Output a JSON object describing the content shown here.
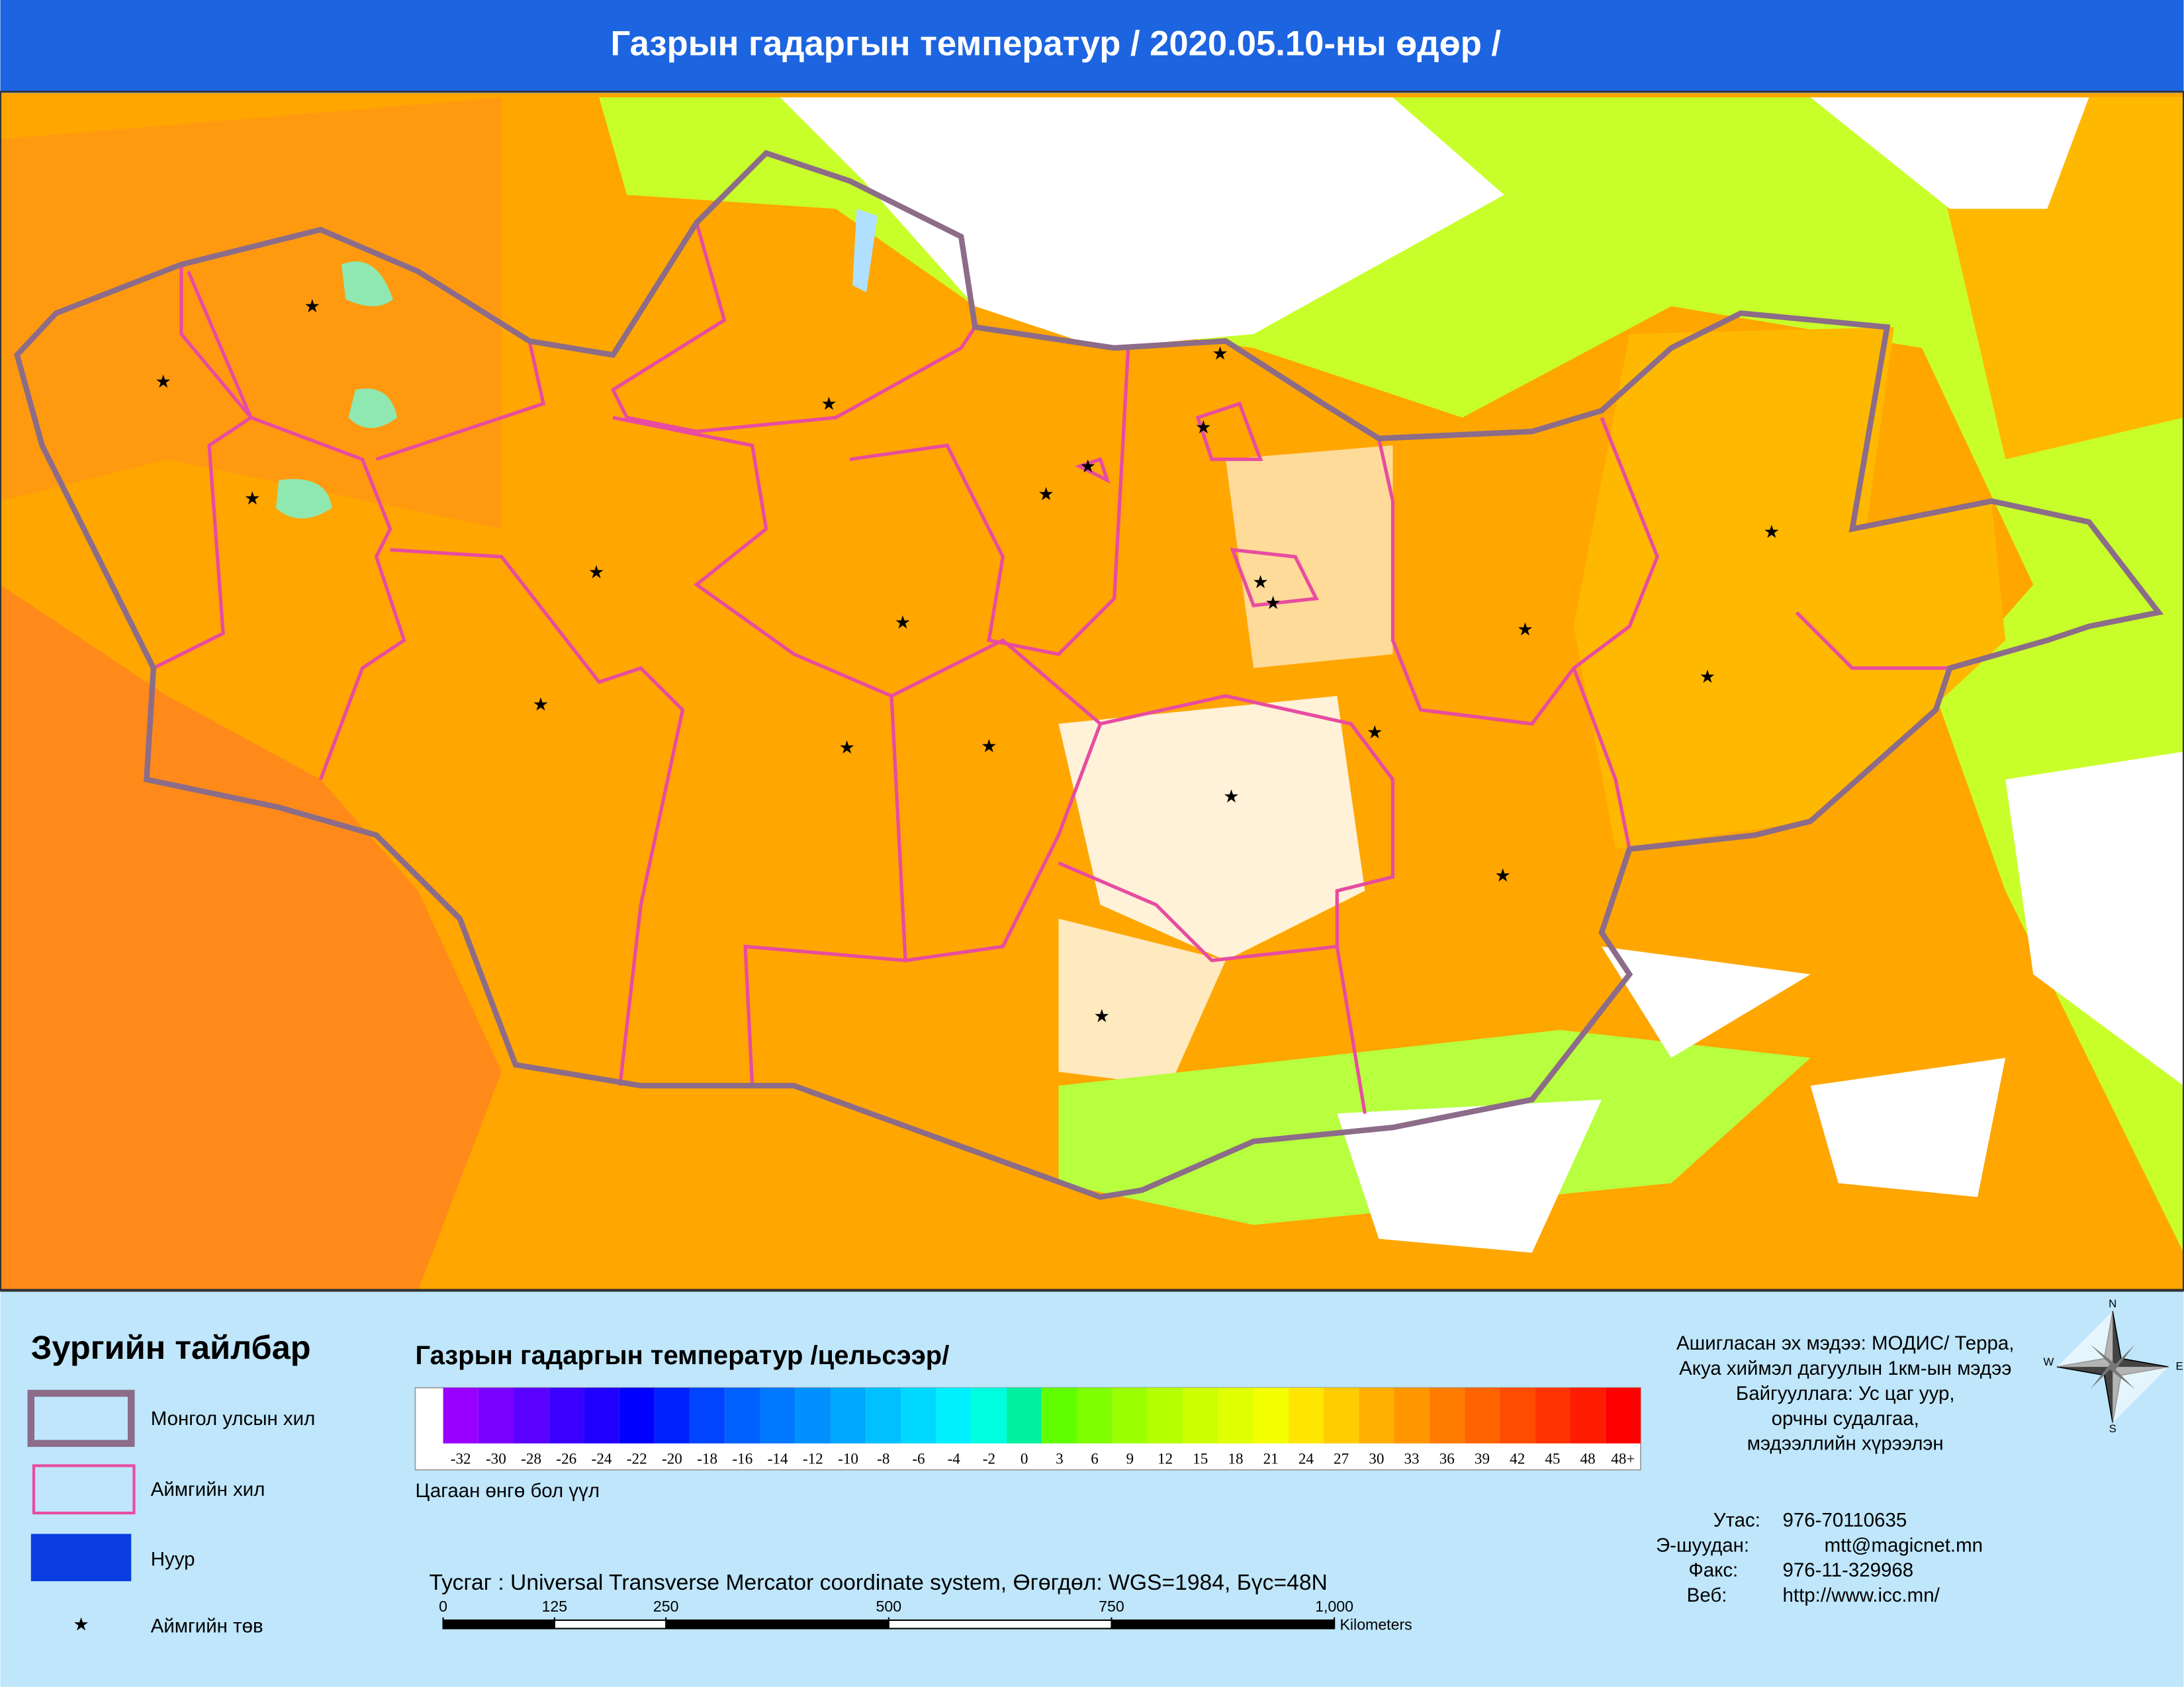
{
  "header": {
    "title": "Газрын гадаргын температур / 2020.05.10-ны өдөр /"
  },
  "legend": {
    "title": "Зургийн тайлбар",
    "items": [
      "Монгол улсын хил",
      "Аймгийн хил",
      "Нуур",
      "Аймгийн төв"
    ]
  },
  "color_scale": {
    "title": "Газрын гадаргын температур /цельсээр/",
    "classes": [
      {
        "label": -32,
        "color": "#9900ff"
      },
      {
        "label": -30,
        "color": "#7a00ff"
      },
      {
        "label": -28,
        "color": "#5a00ff"
      },
      {
        "label": -26,
        "color": "#3a00ff"
      },
      {
        "label": -24,
        "color": "#1f00ff"
      },
      {
        "label": -22,
        "color": "#0000ff"
      },
      {
        "label": -20,
        "color": "#0022ff"
      },
      {
        "label": -18,
        "color": "#0044ff"
      },
      {
        "label": -16,
        "color": "#0060ff"
      },
      {
        "label": -14,
        "color": "#0078ff"
      },
      {
        "label": -12,
        "color": "#0090ff"
      },
      {
        "label": -10,
        "color": "#00a8ff"
      },
      {
        "label": -8,
        "color": "#00c0ff"
      },
      {
        "label": -6,
        "color": "#00d8ff"
      },
      {
        "label": -4,
        "color": "#00f0ff"
      },
      {
        "label": -2,
        "color": "#00ffe0"
      },
      {
        "label": 0,
        "color": "#00f0a0"
      },
      {
        "label": 3,
        "color": "#60ff00"
      },
      {
        "label": 6,
        "color": "#80ff00"
      },
      {
        "label": 9,
        "color": "#9cff00"
      },
      {
        "label": 12,
        "color": "#b4ff00"
      },
      {
        "label": 15,
        "color": "#ccff00"
      },
      {
        "label": 18,
        "color": "#e0ff00"
      },
      {
        "label": 21,
        "color": "#f4ff00"
      },
      {
        "label": 24,
        "color": "#ffe600"
      },
      {
        "label": 27,
        "color": "#ffcc00"
      },
      {
        "label": 30,
        "color": "#ffb000"
      },
      {
        "label": 33,
        "color": "#ff9600"
      },
      {
        "label": 36,
        "color": "#ff7c00"
      },
      {
        "label": 39,
        "color": "#ff6400"
      },
      {
        "label": 42,
        "color": "#ff4c00"
      },
      {
        "label": 45,
        "color": "#ff3400"
      },
      {
        "label": 48,
        "color": "#ff1c00"
      },
      {
        "label": "48+",
        "color": "#ff0000"
      }
    ],
    "note": "Цагаан өнгө бол үүл"
  },
  "projection": "Тусгаг : Universal Transverse Mercator coordinate system, Өгөгдөл: WGS=1984, Бүс=48N",
  "scale_bar": {
    "ticks": [
      0,
      125,
      250,
      500,
      750,
      {
        "value": 1000,
        "label": "1,000"
      }
    ],
    "unit": "Kilometers"
  },
  "source": [
    "Ашигласан эх мэдээ: МОДИС/ Терра,",
    "Акуа хиймэл дагуулын 1км-ын мэдээ",
    "Байгууллага: Ус цаг уур,",
    "орчны судалгаа,",
    "мэдээллийн хүрээлэн"
  ],
  "contacts": [
    {
      "label": "Утас:",
      "value": "976-70110635"
    },
    {
      "label": "Э-шуудан:",
      "value": "mtt@magicnet.mn"
    },
    {
      "label": "Факс:",
      "value": "976-11-329968"
    },
    {
      "label": "Веб:",
      "value": "http://www.icc.mn/"
    }
  ],
  "compass": {
    "n": "N",
    "e": "E",
    "w": "W",
    "s": "S"
  }
}
